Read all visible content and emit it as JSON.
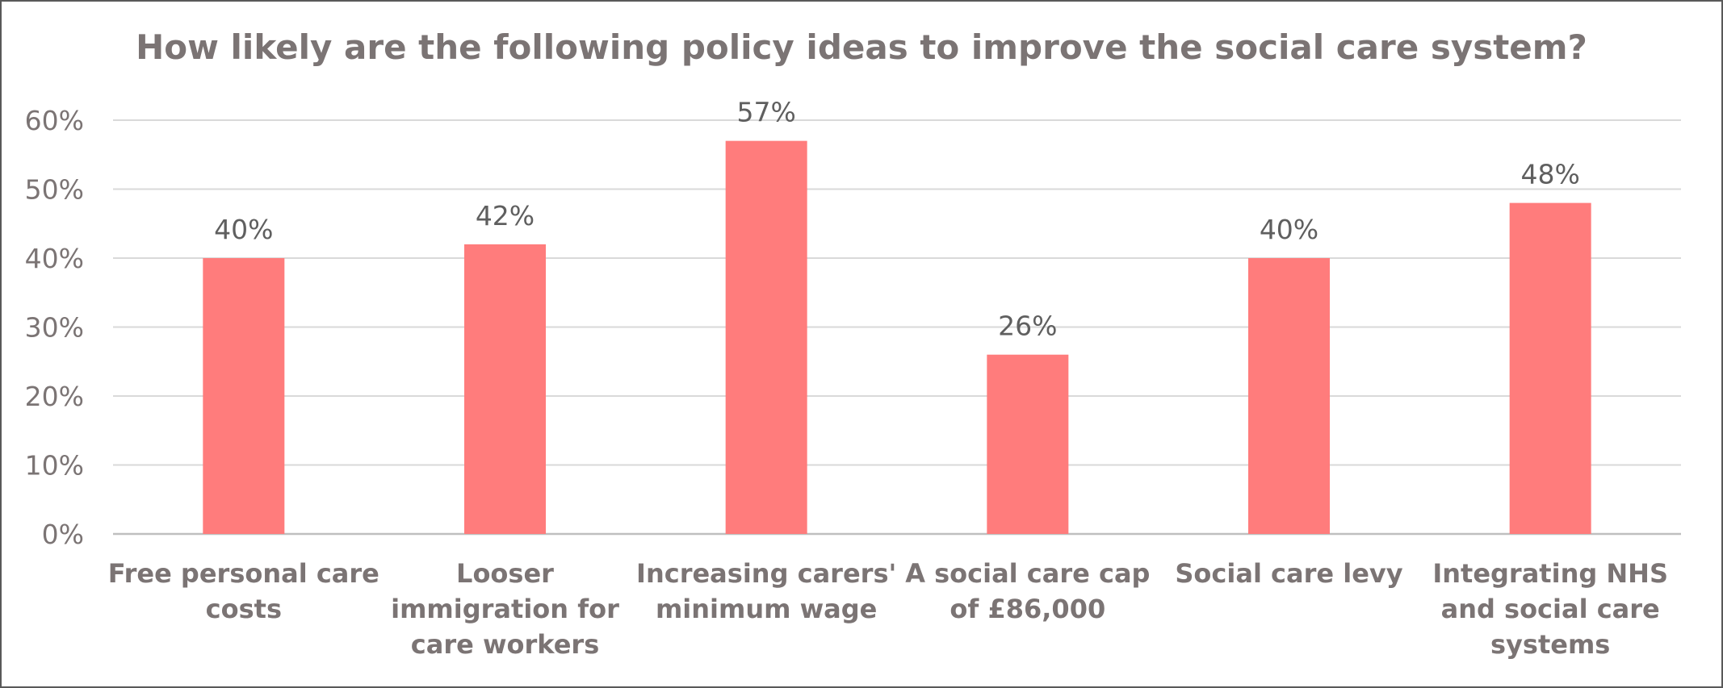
{
  "chart_data": {
    "type": "bar",
    "title": "How likely are the following policy ideas to improve the social care system?",
    "categories": [
      [
        "Free personal care",
        "costs"
      ],
      [
        "Looser",
        "immigration for",
        "care workers"
      ],
      [
        "Increasing carers'",
        "minimum wage"
      ],
      [
        "A social care cap",
        "of £86,000"
      ],
      [
        "Social care levy"
      ],
      [
        "Integrating NHS",
        "and social care",
        "systems"
      ]
    ],
    "values": [
      40,
      42,
      57,
      26,
      40,
      48
    ],
    "value_labels": [
      "40%",
      "42%",
      "57%",
      "26%",
      "40%",
      "48%"
    ],
    "ylim": [
      0,
      60
    ],
    "yticks": [
      0,
      10,
      20,
      30,
      40,
      50,
      60
    ],
    "ytick_labels": [
      "0%",
      "10%",
      "20%",
      "30%",
      "40%",
      "50%",
      "60%"
    ],
    "xlabel": "",
    "ylabel": "",
    "grid": true,
    "legend": "none",
    "colors": {
      "bar": "#ff7c7c",
      "grid": "#d9d9d9",
      "axis": "#bfbfbf",
      "text": "#7b7474",
      "value_text": "#5f5f5f",
      "border": "#595959"
    }
  }
}
